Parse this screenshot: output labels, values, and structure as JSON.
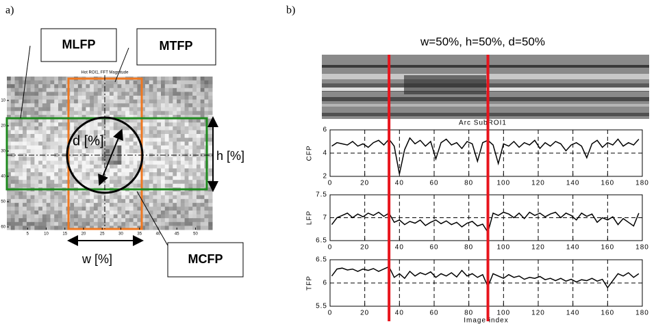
{
  "panel_a": {
    "label": "a)",
    "image_title": "Hot ROI1, FFT Magnitude",
    "yticks": [
      10,
      20,
      30,
      40,
      50,
      60
    ],
    "xticks": [
      5,
      10,
      15,
      20,
      25,
      30,
      35,
      40,
      45,
      50
    ],
    "callouts": {
      "mlfp": "MLFP",
      "mtfp": "MTFP",
      "mcfp": "MCFP"
    },
    "dims": {
      "d": "d [%]",
      "h": "h [%]",
      "w": "w [%]"
    }
  },
  "panel_b": {
    "label": "b)",
    "title": "w=50%, h=50%, d=50%",
    "image_caption": "Arc SubROI1",
    "markers": [
      34,
      91
    ],
    "marker_color": "#e8141c"
  },
  "chart_data": [
    {
      "type": "line",
      "ylabel": "CFP",
      "color": "#000000",
      "grid": true,
      "xlim": [
        0,
        180
      ],
      "ylim": [
        2,
        6
      ],
      "xticks": [
        0,
        20,
        40,
        60,
        80,
        100,
        120,
        140,
        160,
        180
      ],
      "yticks": [
        2,
        4,
        6
      ],
      "x": [
        1,
        4,
        7,
        10,
        13,
        16,
        19,
        22,
        25,
        28,
        31,
        34,
        37,
        40,
        43,
        46,
        49,
        52,
        55,
        58,
        61,
        64,
        67,
        70,
        73,
        76,
        79,
        82,
        85,
        88,
        91,
        94,
        97,
        100,
        103,
        106,
        109,
        112,
        115,
        118,
        121,
        124,
        127,
        130,
        133,
        136,
        139,
        142,
        145,
        148,
        151,
        154,
        157,
        160,
        163,
        166,
        169,
        172,
        175,
        178
      ],
      "values": [
        4.6,
        4.9,
        4.8,
        4.7,
        5.0,
        4.6,
        4.8,
        4.5,
        4.9,
        5.1,
        4.7,
        5.2,
        4.6,
        2.2,
        4.3,
        5.3,
        4.8,
        5.1,
        4.6,
        5.0,
        3.5,
        4.9,
        5.2,
        4.7,
        4.9,
        4.4,
        5.0,
        4.8,
        3.3,
        4.9,
        5.1,
        4.7,
        3.1,
        4.8,
        4.6,
        5.0,
        4.5,
        4.9,
        4.7,
        5.1,
        4.4,
        4.9,
        4.6,
        5.0,
        4.8,
        4.2,
        4.7,
        4.9,
        4.6,
        3.6,
        4.8,
        5.1,
        4.5,
        4.9,
        4.7,
        5.2,
        4.6,
        4.9,
        4.7,
        5.2
      ]
    },
    {
      "type": "line",
      "ylabel": "LFP",
      "color": "#000000",
      "grid": true,
      "xlim": [
        0,
        180
      ],
      "ylim": [
        6.5,
        7.5
      ],
      "xticks": [
        0,
        20,
        40,
        60,
        80,
        100,
        120,
        140,
        160,
        180
      ],
      "yticks": [
        6.5,
        7,
        7.5
      ],
      "x": [
        1,
        4,
        7,
        10,
        13,
        16,
        19,
        22,
        25,
        28,
        31,
        34,
        37,
        40,
        43,
        46,
        49,
        52,
        55,
        58,
        61,
        64,
        67,
        70,
        73,
        76,
        79,
        82,
        85,
        88,
        91,
        94,
        97,
        100,
        103,
        106,
        109,
        112,
        115,
        118,
        121,
        124,
        127,
        130,
        133,
        136,
        139,
        142,
        145,
        148,
        151,
        154,
        157,
        160,
        163,
        166,
        169,
        172,
        175,
        178
      ],
      "values": [
        6.85,
        7.0,
        7.05,
        7.1,
        7.0,
        7.08,
        7.02,
        7.1,
        7.05,
        7.12,
        7.03,
        7.1,
        6.9,
        6.95,
        6.85,
        6.92,
        6.88,
        6.95,
        6.83,
        6.9,
        6.95,
        6.87,
        6.93,
        6.85,
        6.9,
        6.8,
        6.88,
        6.92,
        6.82,
        6.86,
        6.68,
        7.1,
        7.05,
        7.12,
        7.08,
        7.0,
        7.1,
        6.98,
        7.12,
        7.05,
        7.1,
        7.02,
        7.08,
        7.12,
        7.0,
        7.1,
        7.05,
        6.95,
        7.1,
        7.03,
        7.08,
        6.9,
        7.0,
        6.95,
        7.02,
        6.85,
        6.98,
        6.9,
        6.82,
        7.1
      ]
    },
    {
      "type": "line",
      "ylabel": "TFP",
      "xlabel": "Image index",
      "color": "#000000",
      "grid": true,
      "xlim": [
        0,
        180
      ],
      "ylim": [
        5.5,
        6.5
      ],
      "xticks": [
        0,
        20,
        40,
        60,
        80,
        100,
        120,
        140,
        160,
        180
      ],
      "yticks": [
        5.5,
        6,
        6.5
      ],
      "x": [
        1,
        4,
        7,
        10,
        13,
        16,
        19,
        22,
        25,
        28,
        31,
        34,
        37,
        40,
        43,
        46,
        49,
        52,
        55,
        58,
        61,
        64,
        67,
        70,
        73,
        76,
        79,
        82,
        85,
        88,
        91,
        94,
        97,
        100,
        103,
        106,
        109,
        112,
        115,
        118,
        121,
        124,
        127,
        130,
        133,
        136,
        139,
        142,
        145,
        148,
        151,
        154,
        157,
        160,
        163,
        166,
        169,
        172,
        175,
        178
      ],
      "values": [
        6.15,
        6.3,
        6.32,
        6.28,
        6.3,
        6.25,
        6.3,
        6.27,
        6.31,
        6.25,
        6.3,
        6.35,
        6.12,
        6.2,
        6.1,
        6.25,
        6.15,
        6.22,
        6.18,
        6.24,
        6.12,
        6.2,
        6.15,
        6.22,
        6.13,
        6.27,
        6.15,
        6.2,
        6.12,
        6.18,
        5.92,
        6.2,
        6.15,
        6.1,
        6.18,
        6.12,
        6.15,
        6.08,
        6.12,
        6.1,
        6.14,
        6.07,
        6.1,
        6.05,
        6.1,
        6.04,
        6.08,
        6.02,
        6.07,
        6.05,
        6.1,
        6.04,
        6.08,
        5.9,
        6.05,
        6.2,
        6.15,
        6.22,
        6.12,
        6.2
      ]
    }
  ]
}
